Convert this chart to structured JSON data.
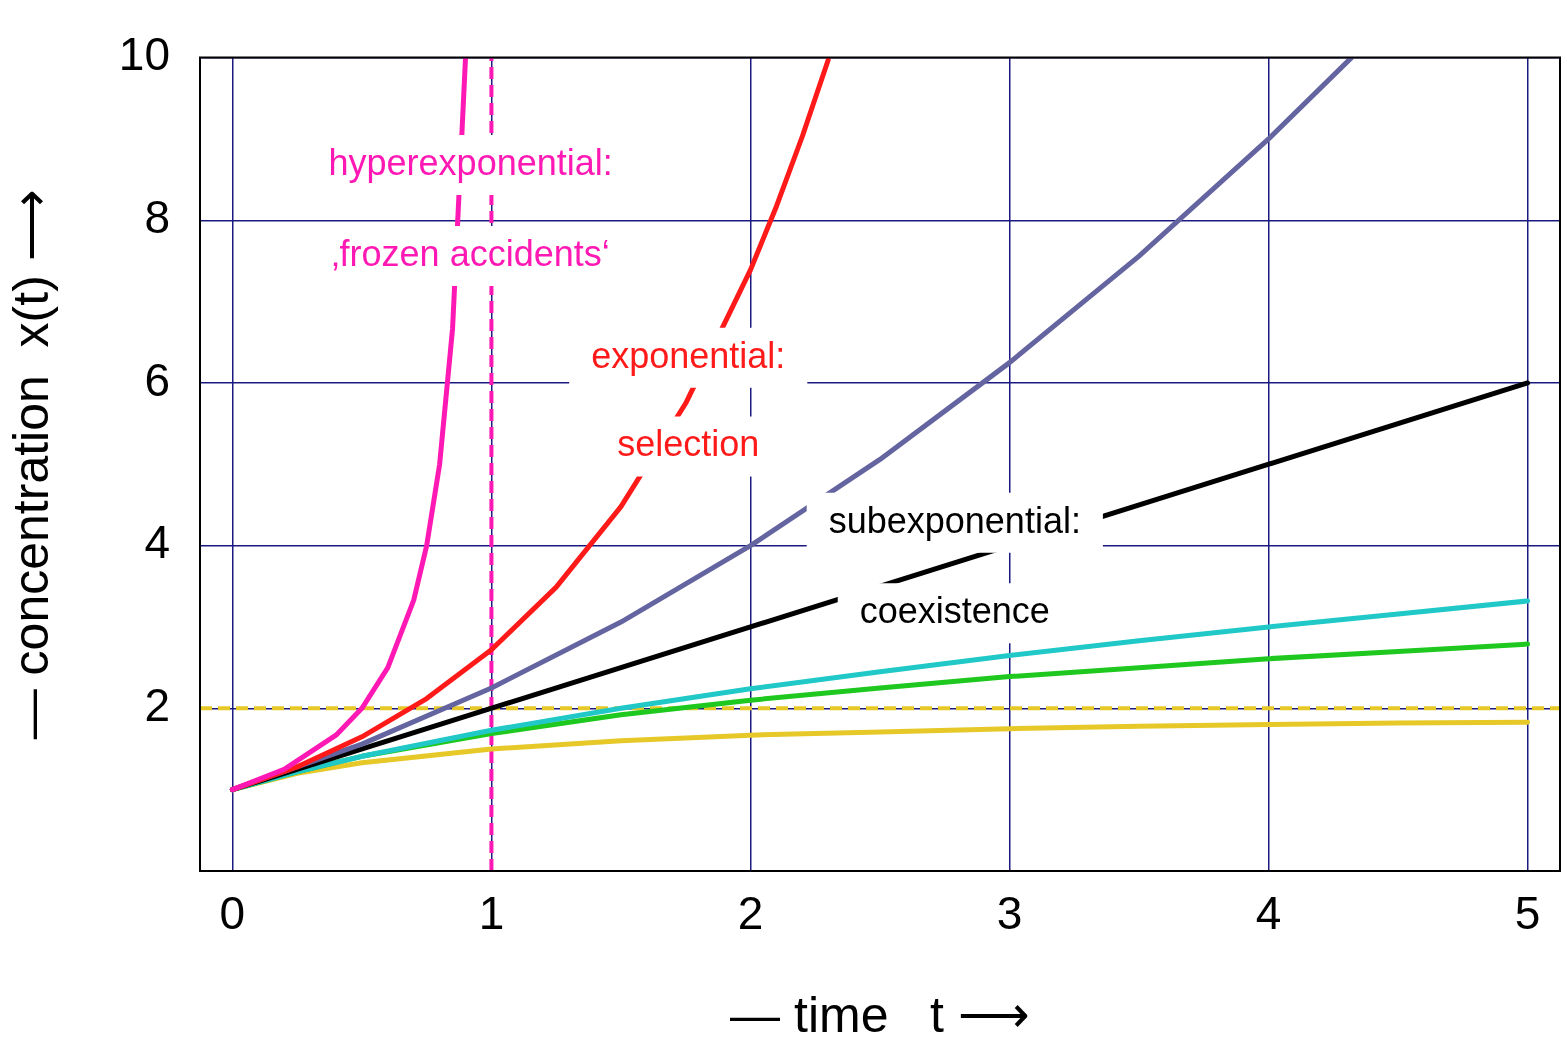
{
  "chart_data": {
    "type": "line",
    "xlabel": "— time   t ⟶",
    "ylabel": "— concentration  x(t) ⟶",
    "xlim": [
      -0.125,
      5.125
    ],
    "ylim": [
      0,
      10
    ],
    "xticks": [
      0,
      1,
      2,
      3,
      4,
      5
    ],
    "yticks": [
      2,
      4,
      6,
      8,
      10
    ],
    "grid": true,
    "legend": false,
    "marker": "none",
    "line_style": "solid",
    "series": [
      {
        "color": "#ff19b4",
        "x": [
          0,
          0.2,
          0.4,
          0.5,
          0.6,
          0.7,
          0.75,
          0.8,
          0.85,
          0.9
        ],
        "values": [
          1,
          1.25,
          1.67,
          2,
          2.5,
          3.33,
          4,
          5,
          6.67,
          10
        ]
      },
      {
        "color": "#ff1a1a",
        "x": [
          0,
          0.25,
          0.5,
          0.75,
          1,
          1.25,
          1.5,
          1.75,
          2,
          2.1,
          2.2,
          2.3
        ],
        "values": [
          1,
          1.28,
          1.65,
          2.12,
          2.72,
          3.49,
          4.48,
          5.75,
          7.39,
          8.17,
          9.03,
          9.97
        ]
      },
      {
        "color": "#6464a0",
        "x": [
          0,
          0.5,
          1,
          1.5,
          2,
          2.5,
          3,
          3.5,
          4,
          4.32
        ],
        "values": [
          1,
          1.56,
          2.25,
          3.06,
          4,
          5.06,
          6.25,
          7.56,
          9,
          10
        ]
      },
      {
        "color": "#000000",
        "x": [
          0,
          5
        ],
        "values": [
          1,
          6
        ]
      },
      {
        "color": "#20c8c8",
        "x": [
          0,
          0.25,
          0.5,
          1,
          1.5,
          2,
          2.5,
          3,
          3.5,
          4,
          4.5,
          5
        ],
        "values": [
          1,
          1.22,
          1.41,
          1.73,
          2,
          2.24,
          2.45,
          2.65,
          2.83,
          3,
          3.16,
          3.32
        ]
      },
      {
        "color": "#1ec81e",
        "x": [
          0,
          0.25,
          0.5,
          1,
          1.5,
          2,
          2.5,
          3,
          3.5,
          4,
          4.5,
          5
        ],
        "values": [
          1,
          1.22,
          1.41,
          1.69,
          1.92,
          2.1,
          2.25,
          2.39,
          2.5,
          2.61,
          2.7,
          2.79
        ]
      },
      {
        "color": "#e6c828",
        "x": [
          0,
          0.25,
          0.5,
          1,
          1.5,
          2,
          2.5,
          3,
          3.5,
          4,
          4.5,
          5
        ],
        "values": [
          1,
          1.2,
          1.33,
          1.5,
          1.6,
          1.67,
          1.71,
          1.75,
          1.78,
          1.8,
          1.82,
          1.83
        ]
      }
    ],
    "ref_lines": [
      {
        "axis": "x",
        "value": 1,
        "color": "#ff19b4",
        "line_style": "dashed"
      },
      {
        "axis": "y",
        "value": 2,
        "color": "#e6c828",
        "line_style": "dashed"
      }
    ],
    "annotations": [
      "hyperexponential:",
      "‚frozen accidents‘",
      "exponential:",
      "selection",
      "subexponential:",
      "coexistence"
    ]
  }
}
